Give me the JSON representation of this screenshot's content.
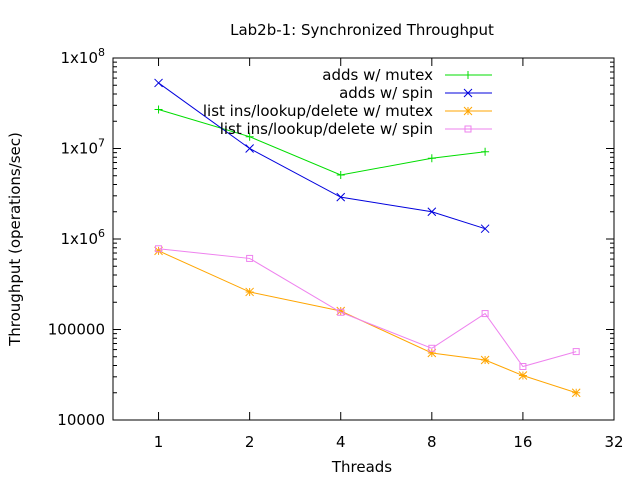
{
  "chart_data": {
    "type": "line",
    "title": "Lab2b-1: Synchronized Throughput",
    "xlabel": "Threads",
    "ylabel": "Throughput (operations/sec)",
    "x_scale": "log2",
    "y_scale": "log10",
    "xlim": [
      0.7071,
      32
    ],
    "ylim": [
      10000,
      100000000
    ],
    "x_ticks": [
      {
        "value": 1,
        "label": "1"
      },
      {
        "value": 2,
        "label": "2"
      },
      {
        "value": 4,
        "label": "4"
      },
      {
        "value": 8,
        "label": "8"
      },
      {
        "value": 16,
        "label": "16"
      },
      {
        "value": 32,
        "label": "32"
      }
    ],
    "y_ticks": [
      {
        "value": 10000,
        "label": "10000"
      },
      {
        "value": 100000,
        "label": "100000"
      },
      {
        "value": 1000000,
        "label": "1x10",
        "sup": "6"
      },
      {
        "value": 10000000,
        "label": "1x10",
        "sup": "7"
      },
      {
        "value": 100000000,
        "label": "1x10",
        "sup": "8"
      }
    ],
    "grid": false,
    "legend_position": "top-right",
    "series": [
      {
        "name": "adds w/ mutex",
        "color": "#00dd00",
        "marker": "plus",
        "points": [
          [
            1,
            27000000
          ],
          [
            2,
            13500000
          ],
          [
            4,
            5100000
          ],
          [
            8,
            7800000
          ],
          [
            12,
            9200000
          ]
        ]
      },
      {
        "name": "adds w/ spin",
        "color": "#0000dd",
        "marker": "cross",
        "points": [
          [
            1,
            53000000
          ],
          [
            2,
            10000000
          ],
          [
            4,
            2900000
          ],
          [
            8,
            2000000
          ],
          [
            12,
            1300000
          ]
        ]
      },
      {
        "name": "list ins/lookup/delete w/ mutex",
        "color": "#ffa500",
        "marker": "star",
        "points": [
          [
            1,
            740000
          ],
          [
            2,
            260000
          ],
          [
            4,
            160000
          ],
          [
            8,
            55000
          ],
          [
            12,
            46000
          ],
          [
            16,
            31000
          ],
          [
            24,
            20000
          ]
        ]
      },
      {
        "name": "list ins/lookup/delete w/ spin",
        "color": "#ee82ee",
        "marker": "square",
        "points": [
          [
            1,
            780000
          ],
          [
            2,
            610000
          ],
          [
            4,
            155000
          ],
          [
            8,
            62000
          ],
          [
            12,
            150000
          ],
          [
            16,
            39000
          ],
          [
            24,
            57000
          ]
        ]
      }
    ]
  }
}
